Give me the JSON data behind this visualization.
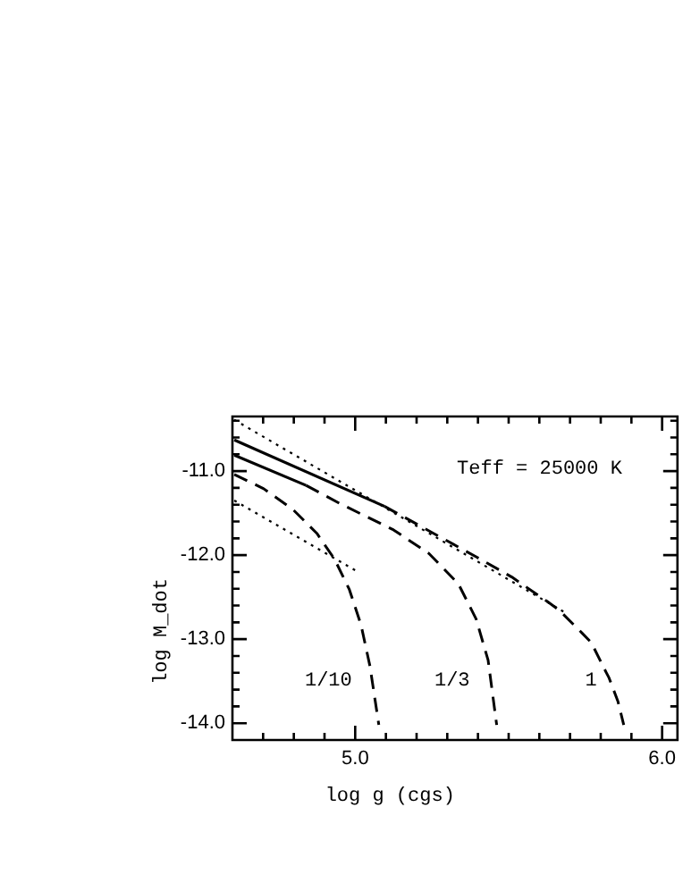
{
  "chart_data": {
    "type": "line",
    "xlabel": "log g (cgs)",
    "ylabel": "log M_dot",
    "xlim": [
      4.6,
      6.05
    ],
    "ylim": [
      -14.2,
      -10.35
    ],
    "xticks": [
      {
        "value": 4.7,
        "label": null
      },
      {
        "value": 4.8,
        "label": null
      },
      {
        "value": 4.9,
        "label": null
      },
      {
        "value": 5.0,
        "label": "5.0"
      },
      {
        "value": 5.1,
        "label": null
      },
      {
        "value": 5.2,
        "label": null
      },
      {
        "value": 5.3,
        "label": null
      },
      {
        "value": 5.4,
        "label": null
      },
      {
        "value": 5.5,
        "label": null
      },
      {
        "value": 5.6,
        "label": null
      },
      {
        "value": 5.7,
        "label": null
      },
      {
        "value": 5.8,
        "label": null
      },
      {
        "value": 5.9,
        "label": null
      },
      {
        "value": 6.0,
        "label": "6.0"
      }
    ],
    "yticks": [
      {
        "value": -10.4,
        "label": null
      },
      {
        "value": -10.6,
        "label": null
      },
      {
        "value": -10.8,
        "label": null
      },
      {
        "value": -11.0,
        "label": "-11.0"
      },
      {
        "value": -11.2,
        "label": null
      },
      {
        "value": -11.4,
        "label": null
      },
      {
        "value": -11.6,
        "label": null
      },
      {
        "value": -11.8,
        "label": null
      },
      {
        "value": -12.0,
        "label": "-12.0"
      },
      {
        "value": -12.2,
        "label": null
      },
      {
        "value": -12.4,
        "label": null
      },
      {
        "value": -12.6,
        "label": null
      },
      {
        "value": -12.8,
        "label": null
      },
      {
        "value": -13.0,
        "label": "-13.0"
      },
      {
        "value": -13.2,
        "label": null
      },
      {
        "value": -13.4,
        "label": null
      },
      {
        "value": -13.6,
        "label": null
      },
      {
        "value": -13.8,
        "label": null
      },
      {
        "value": -14.0,
        "label": "-14.0"
      }
    ],
    "grid": false,
    "legend": false,
    "marker": "none",
    "series": [
      {
        "color": "#000000",
        "line_style": "dotted",
        "x": [
          4.606,
          5.692
        ],
        "values": [
          -10.39,
          -12.7
        ]
      },
      {
        "color": "#000000",
        "line_style": "dotted",
        "x": [
          4.606,
          5.0
        ],
        "values": [
          -11.35,
          -12.18
        ]
      },
      {
        "color": "#000000",
        "line_style": "solid",
        "x": [
          4.606,
          5.096
        ],
        "values": [
          -10.63,
          -11.42
        ]
      },
      {
        "name": "1",
        "color": "#000000",
        "line_style": "dashed",
        "x": [
          5.096,
          5.394,
          5.51,
          5.625,
          5.663,
          5.74,
          5.769,
          5.817,
          5.827,
          5.856,
          5.875
        ],
        "values": [
          -11.42,
          -12.02,
          -12.26,
          -12.55,
          -12.65,
          -12.93,
          -13.04,
          -13.39,
          -13.46,
          -13.74,
          -14.02
        ]
      },
      {
        "color": "#000000",
        "line_style": "solid",
        "x": [
          4.606,
          4.84
        ],
        "values": [
          -10.81,
          -11.17
        ]
      },
      {
        "name": "1/3",
        "color": "#000000",
        "line_style": "dashed",
        "x": [
          4.84,
          4.952,
          5.125,
          5.24,
          5.336,
          5.394,
          5.433,
          5.461
        ],
        "values": [
          -11.17,
          -11.39,
          -11.7,
          -11.98,
          -12.34,
          -12.76,
          -13.25,
          -14.02
        ]
      },
      {
        "name": "1/10",
        "color": "#000000",
        "line_style": "dashed",
        "x": [
          4.606,
          4.702,
          4.798,
          4.875,
          4.933,
          4.981,
          5.019,
          5.048,
          5.077
        ],
        "values": [
          -11.04,
          -11.21,
          -11.46,
          -11.74,
          -12.05,
          -12.41,
          -12.83,
          -13.32,
          -14.02
        ]
      }
    ],
    "annotations": [
      "Teff = 25000 K"
    ]
  }
}
